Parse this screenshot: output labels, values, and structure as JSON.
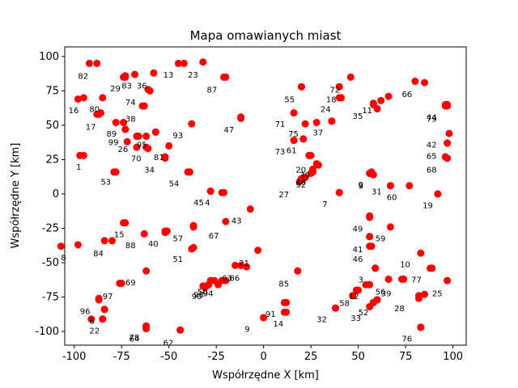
{
  "chart_data": {
    "type": "scatter",
    "title": "Mapa omawianych miast",
    "xlabel": "Współrzędne X [km]",
    "ylabel": "Współrzędne Y [km]",
    "xlim": [
      -105,
      107
    ],
    "ylim": [
      -110,
      107
    ],
    "xticks": [
      -100,
      -75,
      -50,
      -25,
      0,
      25,
      50,
      75,
      100
    ],
    "yticks": [
      -100,
      -75,
      -50,
      -25,
      0,
      25,
      50,
      75,
      100
    ],
    "grid": false,
    "marker_color": "#ff0000",
    "points": [
      {
        "label": "1",
        "x": -97,
        "y": 28,
        "lx": -99,
        "ly": 20
      },
      {
        "label": "3",
        "x": 54,
        "y": -66,
        "lx": 50,
        "ly": -62
      },
      {
        "label": "4",
        "x": -28,
        "y": 2,
        "lx": -31,
        "ly": -6
      },
      {
        "label": "6",
        "x": -91,
        "y": -91,
        "lx": -92,
        "ly": -92
      },
      {
        "label": "7",
        "x": 40,
        "y": 1,
        "lx": 31,
        "ly": -7
      },
      {
        "label": "8",
        "x": -107,
        "y": -38,
        "lx": -107,
        "ly": -46
      },
      {
        "label": "9",
        "x": 0,
        "y": -90,
        "lx": -10,
        "ly": -98
      },
      {
        "label": "9",
        "x": 56,
        "y": 15,
        "lx": 50,
        "ly": 6
      },
      {
        "label": "9",
        "x": 56,
        "y": 15,
        "lx": 50,
        "ly": 7
      },
      {
        "label": "10",
        "x": 88,
        "y": -54,
        "lx": 72,
        "ly": -51
      },
      {
        "label": "11",
        "x": 58,
        "y": 65,
        "lx": 52,
        "ly": 61
      },
      {
        "label": "12",
        "x": 49,
        "y": -70,
        "lx": 45,
        "ly": -74
      },
      {
        "label": "13",
        "x": -58,
        "y": 88,
        "lx": -53,
        "ly": 87
      },
      {
        "label": "14",
        "x": 11,
        "y": -86,
        "lx": 5,
        "ly": -94
      },
      {
        "label": "15",
        "x": -73,
        "y": -21,
        "lx": -79,
        "ly": -29
      },
      {
        "label": "16",
        "x": -98,
        "y": 69,
        "lx": -103,
        "ly": 61
      },
      {
        "label": "17",
        "x": -86,
        "y": 59,
        "lx": -94,
        "ly": 49
      },
      {
        "label": "18",
        "x": 40,
        "y": 70,
        "lx": 33,
        "ly": 69
      },
      {
        "label": "19",
        "x": 92,
        "y": 0,
        "lx": 84,
        "ly": -8
      },
      {
        "label": "20",
        "x": 29,
        "y": 21,
        "lx": 17,
        "ly": 18
      },
      {
        "label": "21",
        "x": -12,
        "y": -52,
        "lx": -13,
        "ly": -50
      },
      {
        "label": "22",
        "x": -85,
        "y": -91,
        "lx": -92,
        "ly": -99
      },
      {
        "label": "23",
        "x": -42,
        "y": 95,
        "lx": -40,
        "ly": 87
      },
      {
        "label": "24",
        "x": 36,
        "y": 53,
        "lx": 30,
        "ly": 62
      },
      {
        "label": "25",
        "x": 85,
        "y": -73,
        "lx": 89,
        "ly": -72
      },
      {
        "label": "26",
        "x": -61,
        "y": 33,
        "lx": -77,
        "ly": 33
      },
      {
        "label": "27",
        "x": 20,
        "y": 11,
        "lx": 8,
        "ly": 0
      },
      {
        "label": "28",
        "x": 82,
        "y": -76,
        "lx": 69,
        "ly": -83
      },
      {
        "label": "29",
        "x": -74,
        "y": 85,
        "lx": -81,
        "ly": 77
      },
      {
        "label": "30",
        "x": 26,
        "y": 16,
        "lx": 19,
        "ly": 14
      },
      {
        "label": "31",
        "x": 58,
        "y": 14,
        "lx": 57,
        "ly": 2
      },
      {
        "label": "32",
        "x": 38,
        "y": -83,
        "lx": 28,
        "ly": -91
      },
      {
        "label": "33",
        "x": 58,
        "y": -79,
        "lx": 46,
        "ly": -90
      },
      {
        "label": "34",
        "x": -52,
        "y": 26,
        "lx": -63,
        "ly": 18
      },
      {
        "label": "35",
        "x": 60,
        "y": 62,
        "lx": 47,
        "ly": 57
      },
      {
        "label": "36",
        "x": -61,
        "y": 76,
        "lx": -67,
        "ly": 79
      },
      {
        "label": "37",
        "x": 28,
        "y": 52,
        "lx": 26,
        "ly": 45
      },
      {
        "label": "38",
        "x": -74,
        "y": 52,
        "lx": -73,
        "ly": 55
      },
      {
        "label": "39",
        "x": 66,
        "y": -62,
        "lx": 62,
        "ly": -72
      },
      {
        "label": "40",
        "x": -52,
        "y": -28,
        "lx": -61,
        "ly": -36
      },
      {
        "label": "41",
        "x": 56,
        "y": -38,
        "lx": 47,
        "ly": -40
      },
      {
        "label": "42",
        "x": 97,
        "y": 37,
        "lx": 86,
        "ly": 36
      },
      {
        "label": "43",
        "x": -20,
        "y": -20,
        "lx": -17,
        "ly": -19
      },
      {
        "label": "44",
        "x": 96,
        "y": 64,
        "lx": 86,
        "ly": 56
      },
      {
        "label": "45",
        "x": -22,
        "y": 1,
        "lx": -37,
        "ly": -6
      },
      {
        "label": "46",
        "x": 59,
        "y": -54,
        "lx": 47,
        "ly": -47
      },
      {
        "label": "47",
        "x": -12,
        "y": 56,
        "lx": -21,
        "ly": 47
      },
      {
        "label": "48",
        "x": 20,
        "y": 11,
        "lx": 17,
        "ly": 9
      },
      {
        "label": "49",
        "x": 56,
        "y": -17,
        "lx": 47,
        "ly": -25
      },
      {
        "label": "50",
        "x": -31,
        "y": -68,
        "lx": -35,
        "ly": -71
      },
      {
        "label": "51",
        "x": -38,
        "y": -40,
        "lx": -48,
        "ly": -47
      },
      {
        "label": "52",
        "x": 56,
        "y": -82,
        "lx": 50,
        "ly": -86
      },
      {
        "label": "53",
        "x": -79,
        "y": 16,
        "lx": -86,
        "ly": 9
      },
      {
        "label": "54",
        "x": -40,
        "y": 16,
        "lx": -50,
        "ly": 8
      },
      {
        "label": "55",
        "x": 20,
        "y": 78,
        "lx": 11,
        "ly": 69
      },
      {
        "label": "56",
        "x": 60,
        "y": -77,
        "lx": 59,
        "ly": -71
      },
      {
        "label": "57",
        "x": -52,
        "y": -27,
        "lx": -48,
        "ly": -32
      },
      {
        "label": "58",
        "x": 47,
        "y": -74,
        "lx": 40,
        "ly": -79
      },
      {
        "label": "59",
        "x": 56,
        "y": -31,
        "lx": 59,
        "ly": -32
      },
      {
        "label": "60",
        "x": 67,
        "y": 6,
        "lx": 65,
        "ly": -2
      },
      {
        "label": "61",
        "x": 24,
        "y": 28,
        "lx": 12,
        "ly": 32
      },
      {
        "label": "62",
        "x": -44,
        "y": -99,
        "lx": -53,
        "ly": -108
      },
      {
        "label": "63",
        "x": -26,
        "y": -63,
        "lx": -22,
        "ly": -61
      },
      {
        "label": "64",
        "x": -62,
        "y": -98,
        "lx": -71,
        "ly": -105
      },
      {
        "label": "65",
        "x": 97,
        "y": 26,
        "lx": 86,
        "ly": 28
      },
      {
        "label": "66",
        "x": 80,
        "y": 82,
        "lx": 73,
        "ly": 73
      },
      {
        "label": "67",
        "x": -37,
        "y": -24,
        "lx": -29,
        "ly": -30
      },
      {
        "label": "68",
        "x": 96,
        "y": 27,
        "lx": 86,
        "ly": 18
      },
      {
        "label": "69",
        "x": -76,
        "y": -65,
        "lx": -73,
        "ly": -64
      },
      {
        "label": "70",
        "x": -62,
        "y": 42,
        "lx": -70,
        "ly": 26
      },
      {
        "label": "71",
        "x": 16,
        "y": 59,
        "lx": 6,
        "ly": 51
      },
      {
        "label": "72",
        "x": 40,
        "y": 78,
        "lx": 35,
        "ly": 76
      },
      {
        "label": "73",
        "x": 16,
        "y": 39,
        "lx": 6,
        "ly": 31
      },
      {
        "label": "74",
        "x": -64,
        "y": 64,
        "lx": -73,
        "ly": 67
      },
      {
        "label": "75",
        "x": 21,
        "y": 40,
        "lx": 13,
        "ly": 44
      },
      {
        "label": "76",
        "x": 83,
        "y": -97,
        "lx": 73,
        "ly": -105
      },
      {
        "label": "77",
        "x": 74,
        "y": -62,
        "lx": 78,
        "ly": -62
      },
      {
        "label": "78",
        "x": -62,
        "y": -97,
        "lx": -71,
        "ly": -104
      },
      {
        "label": "79",
        "x": 97,
        "y": 65,
        "lx": 86,
        "ly": 55
      },
      {
        "label": "80",
        "x": -87,
        "y": 58,
        "lx": -92,
        "ly": 62
      },
      {
        "label": "81",
        "x": -52,
        "y": 27,
        "lx": -58,
        "ly": 27
      },
      {
        "label": "82",
        "x": -88,
        "y": 95,
        "lx": -98,
        "ly": 86
      },
      {
        "label": "83",
        "x": -73,
        "y": 86,
        "lx": -75,
        "ly": 79
      },
      {
        "label": "84",
        "x": -84,
        "y": -34,
        "lx": -90,
        "ly": -43
      },
      {
        "label": "85",
        "x": 18,
        "y": -56,
        "lx": 8,
        "ly": -65
      },
      {
        "label": "86",
        "x": -22,
        "y": -63,
        "lx": -18,
        "ly": -61
      },
      {
        "label": "87",
        "x": -21,
        "y": 85,
        "lx": -30,
        "ly": 76
      },
      {
        "label": "88",
        "x": -63,
        "y": -29,
        "lx": -73,
        "ly": -37
      },
      {
        "label": "89",
        "x": -73,
        "y": 47,
        "lx": -83,
        "ly": 44
      },
      {
        "label": "90",
        "x": -32,
        "y": -67,
        "lx": -38,
        "ly": -74
      },
      {
        "label": "91",
        "x": 12,
        "y": -79,
        "lx": 1,
        "ly": -87
      },
      {
        "label": "92",
        "x": 22,
        "y": 12,
        "lx": 17,
        "ly": 7
      },
      {
        "label": "93",
        "x": -57,
        "y": 45,
        "lx": -48,
        "ly": 43
      },
      {
        "label": "94",
        "x": -29,
        "y": -66,
        "lx": -32,
        "ly": -72
      },
      {
        "label": "95",
        "x": -67,
        "y": 42,
        "lx": -67,
        "ly": 36
      },
      {
        "label": "96",
        "x": -84,
        "y": -84,
        "lx": -97,
        "ly": -85
      },
      {
        "label": "97",
        "x": -87,
        "y": -77,
        "lx": -85,
        "ly": -74
      },
      {
        "label": "98",
        "x": -24,
        "y": -66,
        "lx": -37,
        "ly": -73
      },
      {
        "label": "99",
        "x": -72,
        "y": 38,
        "lx": -82,
        "ly": 38
      }
    ],
    "extra_points": [
      [
        -95,
        28
      ],
      [
        -45,
        95
      ],
      [
        -68,
        87
      ],
      [
        -60,
        75
      ],
      [
        -85,
        70
      ],
      [
        -63,
        64
      ],
      [
        -66,
        42
      ],
      [
        -62,
        34
      ],
      [
        -50,
        35
      ],
      [
        -38,
        51
      ],
      [
        -78,
        16
      ],
      [
        -39,
        16
      ],
      [
        -28,
        2
      ],
      [
        -21,
        1
      ],
      [
        -7,
        -11
      ],
      [
        -74,
        -21
      ],
      [
        -80,
        -34
      ],
      [
        -51,
        -27
      ],
      [
        -37,
        -23
      ],
      [
        -37,
        -39
      ],
      [
        -98,
        -37
      ],
      [
        -62,
        -56
      ],
      [
        -75,
        -65
      ],
      [
        -30,
        -67
      ],
      [
        -28,
        -63
      ],
      [
        -20,
        -63
      ],
      [
        -15,
        -52
      ],
      [
        -9,
        -53
      ],
      [
        -3,
        -41
      ],
      [
        -87,
        -76
      ],
      [
        -84,
        -84
      ],
      [
        -85,
        -91
      ],
      [
        -62,
        -96
      ],
      [
        -44,
        -99
      ],
      [
        0,
        -90
      ],
      [
        11,
        -79
      ],
      [
        12,
        -86
      ],
      [
        18,
        -56
      ],
      [
        38,
        -83
      ],
      [
        50,
        -70
      ],
      [
        56,
        -66
      ],
      [
        59,
        -54
      ],
      [
        58,
        -79
      ],
      [
        60,
        -77
      ],
      [
        66,
        -62
      ],
      [
        73,
        -62
      ],
      [
        82,
        -74
      ],
      [
        83,
        -43
      ],
      [
        89,
        -54
      ],
      [
        97,
        -63
      ],
      [
        83,
        -97
      ],
      [
        56,
        -16
      ],
      [
        67,
        -24
      ],
      [
        56,
        -31
      ],
      [
        57,
        -38
      ],
      [
        40,
        1
      ],
      [
        57,
        16
      ],
      [
        67,
        6
      ],
      [
        77,
        6
      ],
      [
        92,
        0
      ],
      [
        97,
        26
      ],
      [
        97,
        37
      ],
      [
        98,
        44
      ],
      [
        28,
        22
      ],
      [
        26,
        18
      ],
      [
        25,
        15
      ],
      [
        21,
        11
      ],
      [
        19,
        9
      ],
      [
        25,
        28
      ],
      [
        16,
        39
      ],
      [
        21,
        40
      ],
      [
        16,
        59
      ],
      [
        22,
        51
      ],
      [
        36,
        53
      ],
      [
        41,
        70
      ],
      [
        20,
        78
      ],
      [
        40,
        78
      ],
      [
        46,
        85
      ],
      [
        58,
        66
      ],
      [
        62,
        68
      ],
      [
        66,
        71
      ],
      [
        85,
        81
      ],
      [
        97,
        64
      ],
      [
        96,
        65
      ],
      [
        -95,
        70
      ],
      [
        -88,
        58
      ],
      [
        -78,
        52
      ],
      [
        -73,
        47
      ],
      [
        -57,
        45
      ],
      [
        -67,
        34
      ],
      [
        -92,
        95
      ],
      [
        -73,
        85
      ],
      [
        -32,
        96
      ],
      [
        -20,
        85
      ],
      [
        -12,
        55
      ]
    ]
  }
}
